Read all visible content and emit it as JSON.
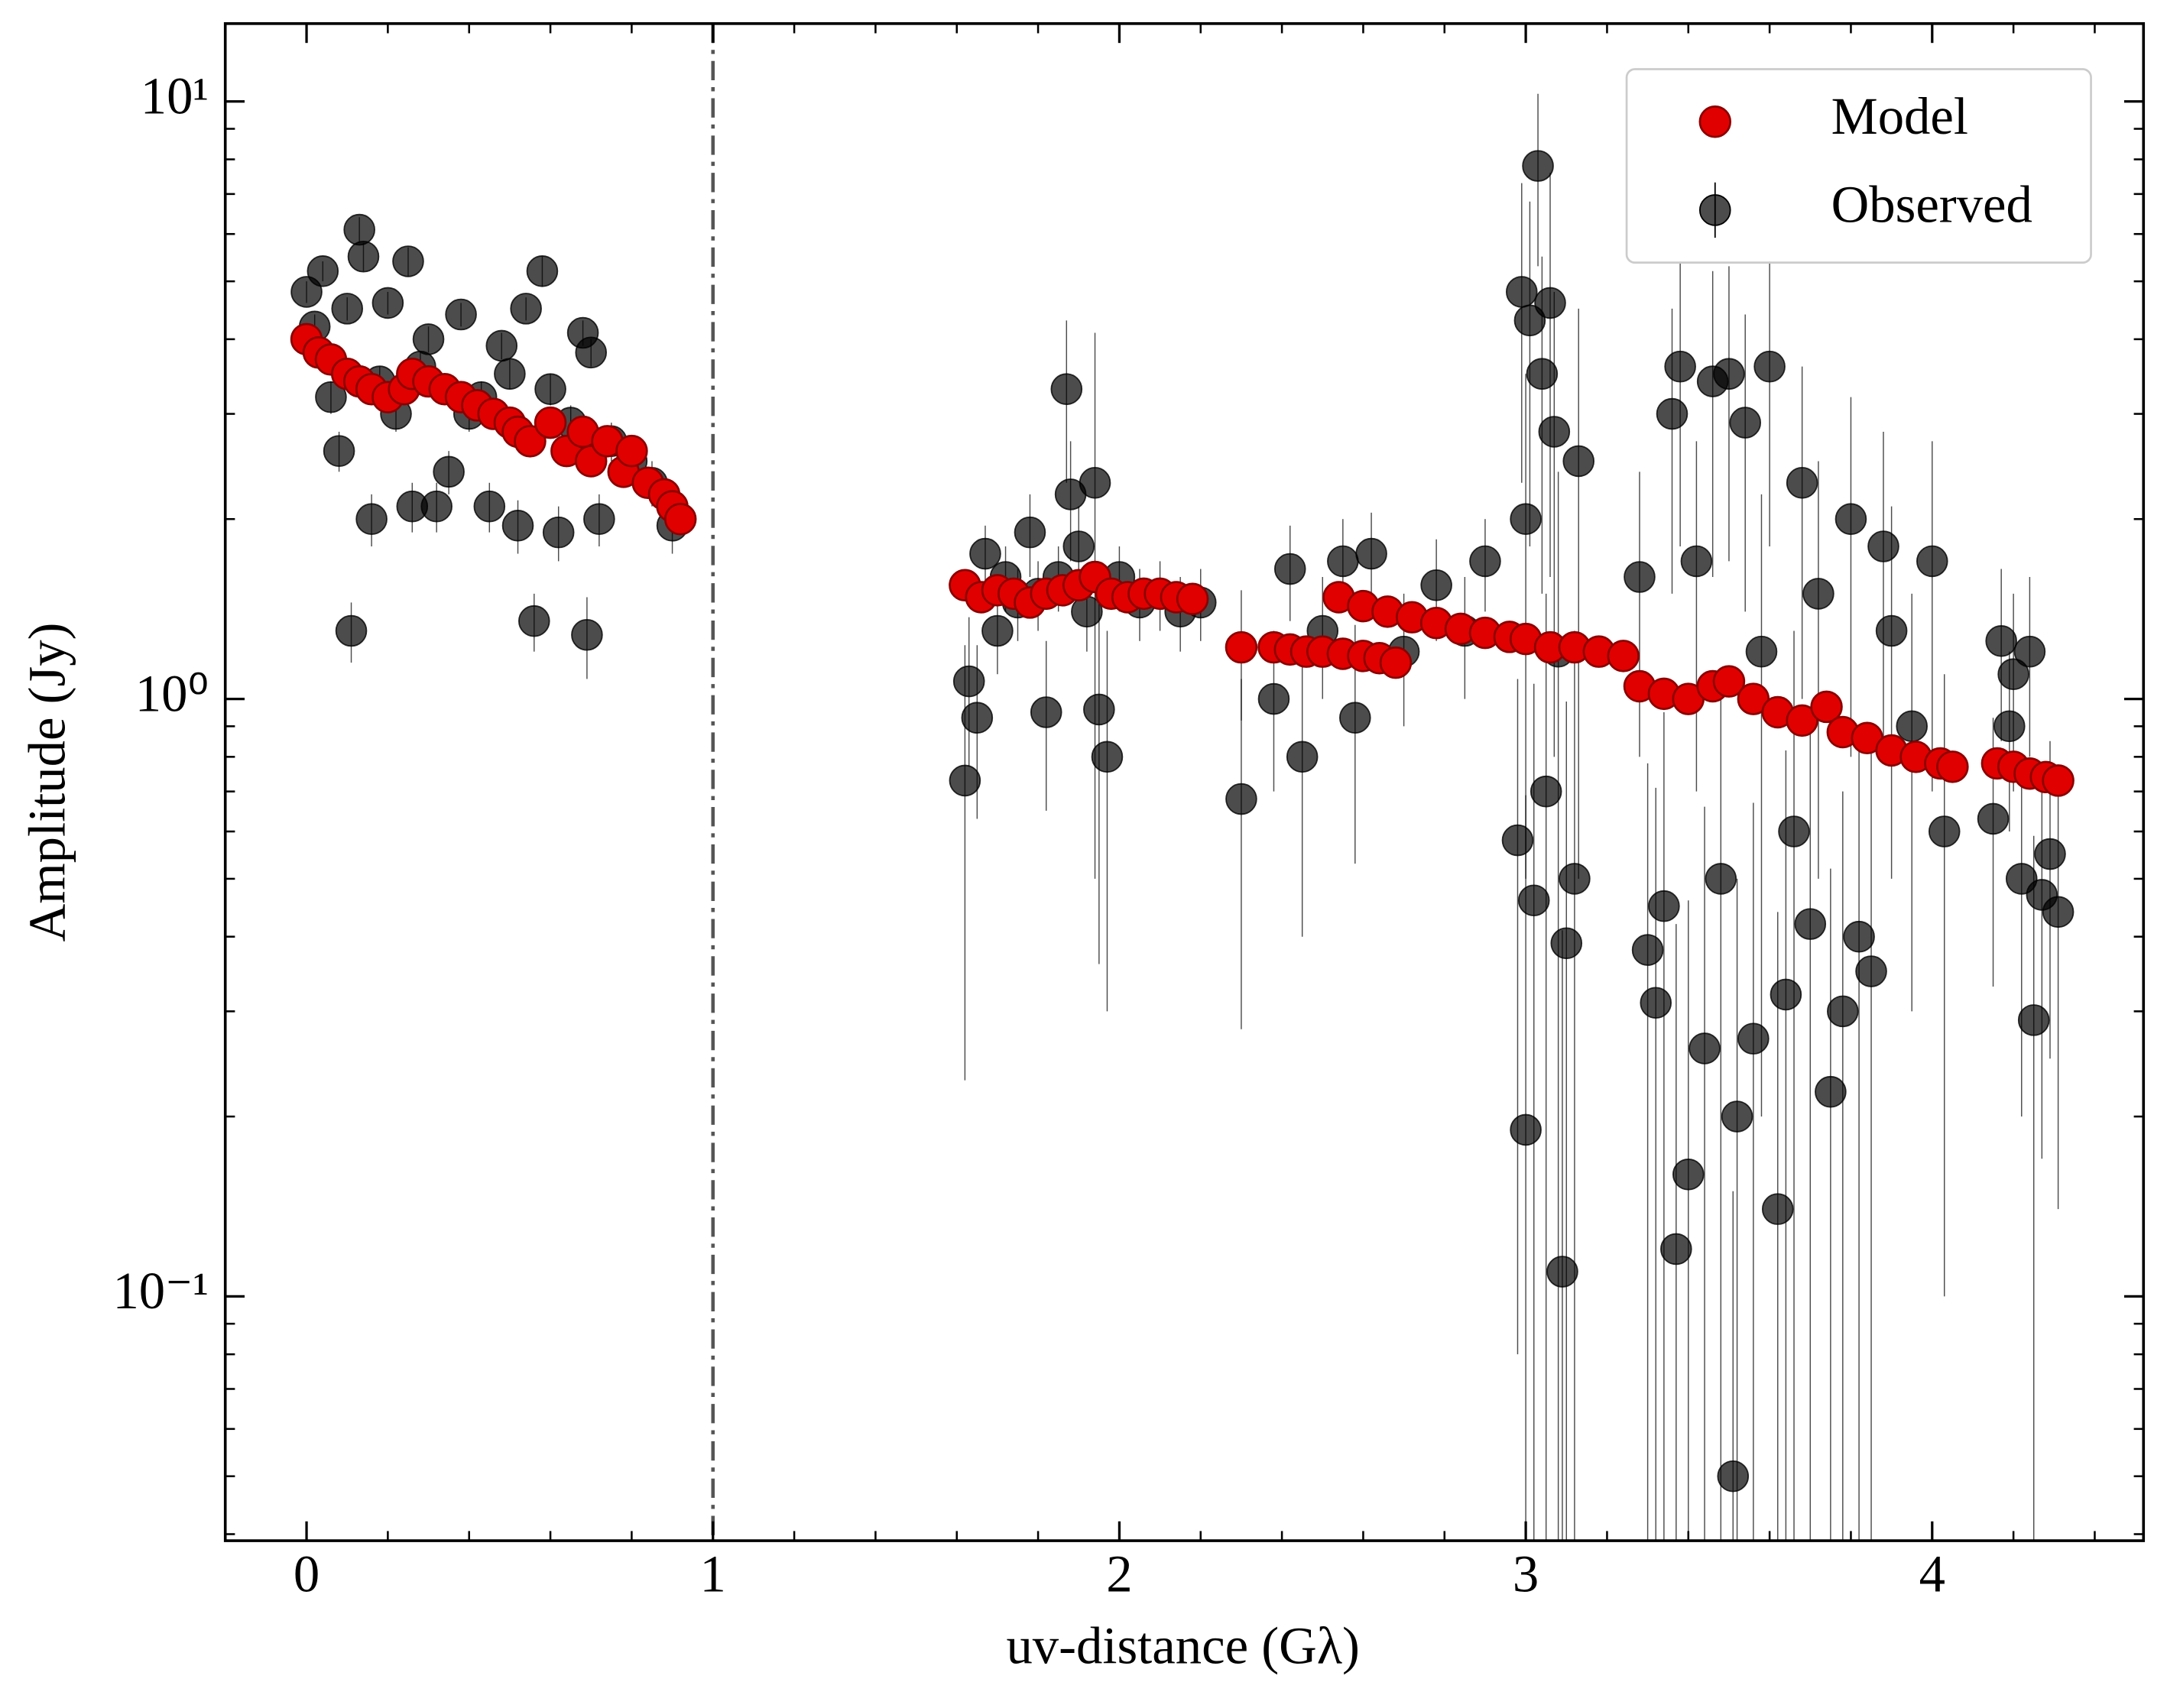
{
  "chart_data": {
    "type": "scatter",
    "xlabel": "uv-distance (Gλ)",
    "ylabel": "Amplitude (Jy)",
    "log_y": true,
    "legend": "upper right",
    "vline": 1,
    "xlim": [
      -0.2,
      4.52
    ],
    "ylim": [
      0.039,
      13.5
    ],
    "xticks": [
      0,
      1,
      2,
      3,
      4
    ],
    "xminorticks": [
      -0.2,
      0.2,
      0.4,
      0.6,
      0.8,
      1.2,
      1.4,
      1.6,
      1.8,
      2.2,
      2.4,
      2.6,
      2.8,
      3.2,
      3.4,
      3.6,
      3.8,
      4.2,
      4.4
    ],
    "yticks": [
      {
        "value": 0.1,
        "label": "10⁻¹"
      },
      {
        "value": 1,
        "label": "10⁰"
      },
      {
        "value": 10,
        "label": "10¹"
      }
    ],
    "yminorticks": [
      0.04,
      0.05,
      0.06,
      0.07,
      0.08,
      0.09,
      0.2,
      0.3,
      0.4,
      0.5,
      0.6,
      0.7,
      0.8,
      0.9,
      2,
      3,
      4,
      5,
      6,
      7,
      8,
      9
    ],
    "series": [
      {
        "name": "Model",
        "color": "#e00000",
        "x": [
          0.0,
          0.03,
          0.06,
          0.1,
          0.13,
          0.16,
          0.2,
          0.24,
          0.26,
          0.3,
          0.34,
          0.38,
          0.42,
          0.46,
          0.5,
          0.52,
          0.55,
          0.6,
          0.64,
          0.68,
          0.7,
          0.74,
          0.78,
          0.8,
          0.84,
          0.88,
          0.9,
          0.92,
          1.62,
          1.66,
          1.7,
          1.74,
          1.78,
          1.82,
          1.86,
          1.9,
          1.94,
          1.98,
          2.02,
          2.06,
          2.1,
          2.14,
          2.18,
          2.3,
          2.38,
          2.42,
          2.46,
          2.5,
          2.55,
          2.6,
          2.64,
          2.68,
          2.54,
          2.6,
          2.66,
          2.72,
          2.78,
          2.84,
          2.9,
          2.96,
          3.0,
          3.06,
          3.12,
          3.18,
          3.24,
          3.28,
          3.34,
          3.4,
          3.46,
          3.5,
          3.56,
          3.62,
          3.68,
          3.74,
          3.78,
          3.84,
          3.9,
          3.96,
          4.02,
          4.05,
          4.16,
          4.2,
          4.24,
          4.28,
          4.31
        ],
        "values": [
          4.0,
          3.8,
          3.7,
          3.5,
          3.4,
          3.3,
          3.2,
          3.3,
          3.5,
          3.4,
          3.3,
          3.2,
          3.1,
          3.0,
          2.9,
          2.8,
          2.7,
          2.9,
          2.6,
          2.8,
          2.5,
          2.7,
          2.4,
          2.6,
          2.3,
          2.2,
          2.1,
          2.0,
          1.55,
          1.48,
          1.52,
          1.5,
          1.45,
          1.5,
          1.52,
          1.55,
          1.6,
          1.5,
          1.48,
          1.5,
          1.5,
          1.48,
          1.47,
          1.22,
          1.22,
          1.21,
          1.2,
          1.2,
          1.19,
          1.18,
          1.17,
          1.15,
          1.48,
          1.43,
          1.4,
          1.37,
          1.34,
          1.31,
          1.29,
          1.27,
          1.26,
          1.22,
          1.22,
          1.2,
          1.18,
          1.05,
          1.02,
          1.0,
          1.05,
          1.07,
          1.0,
          0.95,
          0.92,
          0.97,
          0.88,
          0.86,
          0.82,
          0.8,
          0.78,
          0.77,
          0.78,
          0.77,
          0.75,
          0.74,
          0.73
        ]
      },
      {
        "name": "Observed",
        "color": "#000000",
        "x": [
          0.0,
          0.02,
          0.04,
          0.06,
          0.08,
          0.1,
          0.11,
          0.13,
          0.14,
          0.16,
          0.18,
          0.2,
          0.22,
          0.25,
          0.26,
          0.28,
          0.3,
          0.32,
          0.35,
          0.38,
          0.4,
          0.43,
          0.45,
          0.48,
          0.5,
          0.52,
          0.54,
          0.56,
          0.58,
          0.6,
          0.62,
          0.65,
          0.68,
          0.69,
          0.7,
          0.72,
          0.75,
          0.8,
          0.85,
          0.9,
          1.62,
          1.63,
          1.65,
          1.67,
          1.7,
          1.72,
          1.75,
          1.78,
          1.8,
          1.82,
          1.85,
          1.87,
          1.88,
          1.9,
          1.92,
          1.94,
          1.95,
          1.97,
          2.0,
          2.05,
          2.1,
          2.15,
          2.2,
          2.3,
          2.3,
          2.38,
          2.42,
          2.45,
          2.5,
          2.55,
          2.58,
          2.62,
          2.7,
          2.78,
          2.85,
          2.9,
          2.98,
          2.99,
          3.0,
          3.0,
          3.01,
          3.02,
          3.03,
          3.04,
          3.05,
          3.06,
          3.07,
          3.08,
          3.09,
          3.1,
          3.12,
          3.13,
          3.28,
          3.3,
          3.32,
          3.34,
          3.36,
          3.37,
          3.38,
          3.4,
          3.42,
          3.44,
          3.46,
          3.48,
          3.5,
          3.51,
          3.52,
          3.54,
          3.56,
          3.58,
          3.6,
          3.62,
          3.64,
          3.66,
          3.68,
          3.7,
          3.72,
          3.75,
          3.78,
          3.8,
          3.82,
          3.85,
          3.88,
          3.9,
          3.95,
          4.0,
          4.03,
          4.15,
          4.17,
          4.19,
          4.2,
          4.22,
          4.24,
          4.25,
          4.27,
          4.29,
          4.31
        ],
        "values": [
          4.8,
          4.2,
          5.2,
          3.2,
          2.6,
          4.5,
          1.3,
          6.1,
          5.5,
          2.0,
          3.4,
          4.6,
          3.0,
          5.4,
          2.1,
          3.6,
          4.0,
          2.1,
          2.4,
          4.4,
          3.0,
          3.2,
          2.1,
          3.9,
          3.5,
          1.95,
          4.5,
          1.35,
          5.2,
          3.3,
          1.9,
          2.9,
          4.1,
          1.28,
          3.8,
          2.0,
          2.7,
          2.5,
          2.3,
          1.95,
          0.73,
          1.07,
          0.93,
          1.75,
          1.3,
          1.6,
          1.45,
          1.9,
          1.5,
          0.95,
          1.6,
          3.3,
          2.2,
          1.8,
          1.4,
          2.3,
          0.96,
          0.8,
          1.6,
          1.45,
          1.5,
          1.4,
          1.45,
          1.22,
          0.68,
          1.0,
          1.65,
          0.8,
          1.3,
          1.7,
          0.93,
          1.75,
          1.2,
          1.55,
          1.3,
          1.7,
          0.58,
          4.8,
          0.19,
          2.0,
          4.3,
          0.46,
          7.8,
          3.5,
          0.7,
          4.6,
          2.8,
          1.2,
          0.11,
          0.39,
          0.5,
          2.5,
          1.6,
          0.38,
          0.31,
          0.45,
          3.0,
          0.12,
          3.6,
          0.16,
          1.7,
          0.26,
          3.4,
          0.5,
          3.5,
          0.05,
          0.2,
          2.9,
          0.27,
          1.2,
          3.6,
          0.14,
          0.32,
          0.6,
          2.3,
          0.42,
          1.5,
          0.22,
          0.3,
          2.0,
          0.4,
          0.35,
          1.8,
          1.3,
          0.9,
          1.7,
          0.6,
          0.63,
          1.25,
          0.9,
          1.1,
          0.5,
          1.2,
          0.29,
          0.47,
          0.55,
          0.44
        ],
        "errors": [
          0.2,
          0.2,
          0.2,
          0.2,
          0.2,
          0.2,
          0.15,
          0.3,
          0.3,
          0.2,
          0.2,
          0.2,
          0.2,
          0.3,
          0.2,
          0.2,
          0.2,
          0.2,
          0.2,
          0.2,
          0.2,
          0.2,
          0.2,
          0.2,
          0.2,
          0.2,
          0.2,
          0.15,
          0.3,
          0.2,
          0.2,
          0.2,
          0.2,
          0.2,
          0.2,
          0.2,
          0.2,
          0.2,
          0.2,
          0.2,
          0.5,
          0.3,
          0.3,
          0.2,
          0.2,
          0.2,
          0.2,
          0.3,
          0.2,
          0.3,
          0.2,
          1.0,
          0.5,
          0.3,
          0.2,
          1.8,
          0.6,
          0.5,
          0.2,
          0.2,
          0.2,
          0.2,
          0.2,
          0.3,
          0.4,
          0.3,
          0.3,
          0.4,
          0.3,
          0.3,
          0.4,
          0.3,
          0.3,
          0.3,
          0.3,
          0.3,
          0.5,
          2.5,
          0.5,
          1.5,
          2.5,
          0.6,
          2.5,
          2.0,
          0.8,
          3,
          2,
          1.2,
          0.3,
          0.6,
          0.8,
          2,
          0.8,
          0.4,
          0.4,
          0.5,
          1.5,
          0.3,
          1.8,
          0.3,
          1,
          0.4,
          1.8,
          0.6,
          1.8,
          0.1,
          0.3,
          1.5,
          0.4,
          1,
          1.8,
          0.3,
          0.5,
          0.7,
          1.3,
          0.5,
          1,
          0.3,
          0.4,
          1.2,
          0.5,
          0.5,
          1,
          0.8,
          0.6,
          1,
          0.5,
          0.3,
          0.4,
          0.3,
          0.4,
          0.3,
          0.4,
          0.3,
          0.3,
          0.3,
          0.3
        ]
      }
    ]
  }
}
